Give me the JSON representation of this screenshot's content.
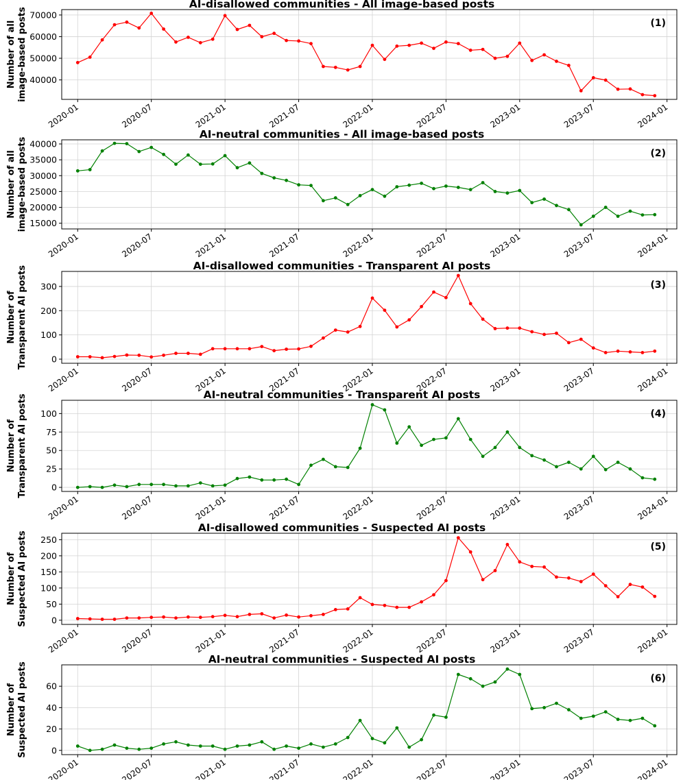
{
  "figure": {
    "x_tick_labels": [
      "2020-01",
      "2020-07",
      "2021-01",
      "2021-07",
      "2022-01",
      "2022-07",
      "2023-01",
      "2023-07",
      "2024-01"
    ],
    "x_tick_months": [
      0,
      6,
      12,
      18,
      24,
      30,
      36,
      42,
      48
    ],
    "x_month_range": [
      -1.3,
      48.8
    ],
    "point_months": [
      0,
      1,
      2,
      3,
      4,
      5,
      6,
      7,
      8,
      9,
      10,
      11,
      12,
      13,
      14,
      15,
      16,
      17,
      18,
      19,
      20,
      21,
      22,
      23,
      24,
      25,
      26,
      27,
      28,
      29,
      30,
      31,
      32,
      33,
      34,
      35,
      36,
      37,
      38,
      39,
      40,
      41,
      42,
      43,
      44,
      45,
      46,
      47
    ]
  },
  "chart_data": [
    {
      "type": "line",
      "panel_label": "(1)",
      "title": "AI-disallowed communities - All image-based posts",
      "ylabel": [
        "Number of all",
        "image-based posts"
      ],
      "color": "#ff0000",
      "ylim": [
        31000,
        72500
      ],
      "yticks": [
        40000,
        50000,
        60000,
        70000
      ],
      "values": [
        48000,
        50500,
        58500,
        65500,
        66700,
        64000,
        70800,
        63500,
        57500,
        59700,
        57200,
        58800,
        69700,
        63300,
        65200,
        60000,
        61500,
        58200,
        58000,
        56800,
        46200,
        45800,
        44600,
        46200,
        56000,
        49500,
        55600,
        56000,
        57000,
        54600,
        57500,
        56800,
        53700,
        54100,
        50000,
        50900,
        57000,
        49000,
        51600,
        48600,
        46700,
        35000,
        41000,
        39900,
        35700,
        35800,
        33200,
        32700
      ]
    },
    {
      "type": "line",
      "panel_label": "(2)",
      "title": "AI-neutral communities - All image-based posts",
      "ylabel": [
        "Number of all",
        "image-based posts"
      ],
      "color": "#008000",
      "ylim": [
        13200,
        41300
      ],
      "yticks": [
        15000,
        20000,
        25000,
        30000,
        35000,
        40000
      ],
      "values": [
        31500,
        31900,
        37800,
        40200,
        40100,
        37600,
        38900,
        36700,
        33600,
        36500,
        33600,
        33700,
        36300,
        32500,
        34000,
        30700,
        29300,
        28500,
        27100,
        26900,
        22100,
        23000,
        20900,
        23700,
        25600,
        23500,
        26500,
        27000,
        27600,
        25900,
        26700,
        26300,
        25600,
        27800,
        25000,
        24500,
        25300,
        21500,
        22600,
        20600,
        19300,
        14500,
        17200,
        20000,
        17200,
        18800,
        17600,
        17700
      ]
    },
    {
      "type": "line",
      "panel_label": "(3)",
      "title": "AI-disallowed communities - Transparent AI posts",
      "ylabel": [
        "Number of",
        "Transparent AI posts"
      ],
      "color": "#ff0000",
      "ylim": [
        -17,
        362
      ],
      "yticks": [
        0,
        100,
        200,
        300
      ],
      "values": [
        10,
        10,
        6,
        11,
        17,
        16,
        9,
        16,
        24,
        24,
        20,
        43,
        43,
        43,
        43,
        52,
        35,
        41,
        42,
        53,
        87,
        120,
        112,
        135,
        252,
        202,
        133,
        162,
        217,
        277,
        254,
        345,
        229,
        165,
        126,
        128,
        128,
        113,
        102,
        107,
        68,
        82,
        46,
        27,
        33,
        30,
        27,
        33
      ]
    },
    {
      "type": "line",
      "panel_label": "(4)",
      "title": "AI-neutral communities - Transparent AI posts",
      "ylabel": [
        "Number of",
        "Transparent AI posts"
      ],
      "color": "#008000",
      "ylim": [
        -5.5,
        118
      ],
      "yticks": [
        0,
        25,
        50,
        75,
        100
      ],
      "values": [
        0,
        1,
        0,
        3,
        1,
        4,
        4,
        4,
        2,
        2,
        6,
        2,
        3,
        12,
        14,
        10,
        10,
        11,
        4,
        30,
        38,
        28,
        27,
        53,
        112,
        105,
        60,
        82,
        57,
        65,
        67,
        93,
        65,
        42,
        54,
        75,
        54,
        43,
        37,
        28,
        34,
        25,
        42,
        24,
        34,
        25,
        13,
        11
      ]
    },
    {
      "type": "line",
      "panel_label": "(5)",
      "title": "AI-disallowed communities - Suspected AI posts",
      "ylabel": [
        "Number of",
        "Suspected AI posts"
      ],
      "color": "#ff0000",
      "ylim": [
        -13,
        270
      ],
      "yticks": [
        0,
        50,
        100,
        150,
        200,
        250
      ],
      "values": [
        5,
        4,
        3,
        3,
        7,
        7,
        9,
        10,
        7,
        10,
        9,
        11,
        15,
        11,
        18,
        20,
        7,
        16,
        10,
        14,
        18,
        33,
        35,
        70,
        49,
        46,
        40,
        40,
        57,
        79,
        123,
        256,
        212,
        126,
        154,
        235,
        181,
        167,
        165,
        134,
        131,
        120,
        143,
        107,
        73,
        111,
        103,
        74
      ]
    },
    {
      "type": "line",
      "panel_label": "(6)",
      "title": "AI-neutral communities - Suspected AI posts",
      "ylabel": [
        "Number of",
        "Suspected AI posts"
      ],
      "color": "#008000",
      "ylim": [
        -4,
        80
      ],
      "yticks": [
        0,
        20,
        40,
        60
      ],
      "values": [
        4,
        0,
        1,
        5,
        2,
        1,
        2,
        6,
        8,
        5,
        4,
        4,
        1,
        4,
        5,
        8,
        1,
        4,
        2,
        6,
        3,
        6,
        12,
        28,
        11,
        7,
        21,
        3,
        10,
        33,
        31,
        71,
        67,
        60,
        64,
        76,
        71,
        39,
        40,
        44,
        38,
        30,
        32,
        36,
        29,
        28,
        30,
        23
      ]
    }
  ]
}
